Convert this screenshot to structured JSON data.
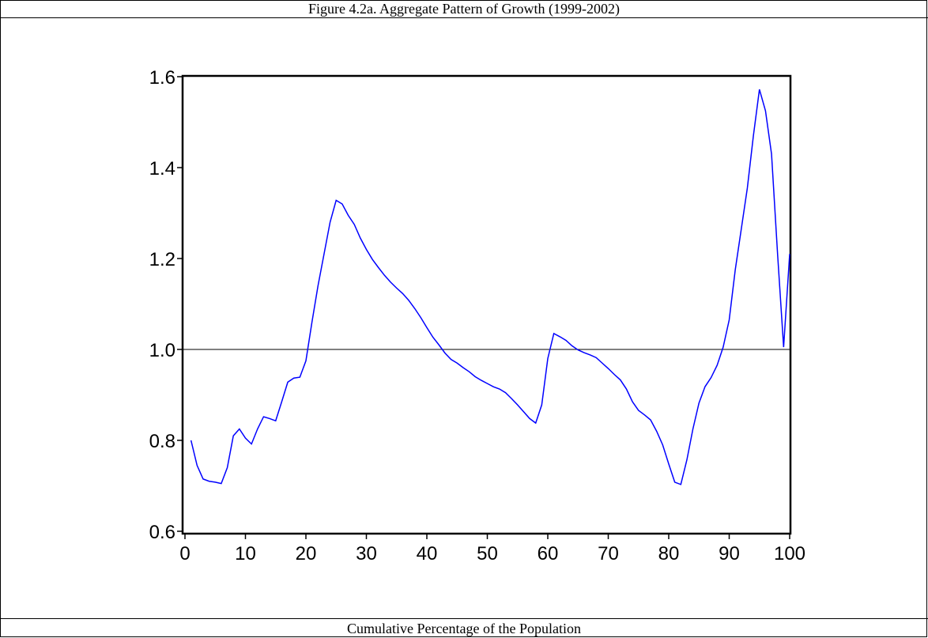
{
  "chart_data": {
    "type": "line",
    "title": "Figure 4.2a. Aggregate Pattern of Growth (1999-2002)",
    "x_label": "Cumulative Percentage of the Population",
    "x": [
      1,
      2,
      3,
      4,
      5,
      6,
      7,
      8,
      9,
      10,
      11,
      12,
      13,
      14,
      15,
      16,
      17,
      18,
      19,
      20,
      21,
      22,
      23,
      24,
      25,
      26,
      27,
      28,
      29,
      30,
      31,
      32,
      33,
      34,
      35,
      36,
      37,
      38,
      39,
      40,
      41,
      42,
      43,
      44,
      45,
      46,
      47,
      48,
      49,
      50,
      51,
      52,
      53,
      54,
      55,
      56,
      57,
      58,
      59,
      60,
      61,
      62,
      63,
      64,
      65,
      66,
      67,
      68,
      69,
      70,
      71,
      72,
      73,
      74,
      75,
      76,
      77,
      78,
      79,
      80,
      81,
      82,
      83,
      84,
      85,
      86,
      87,
      88,
      89,
      90,
      91,
      92,
      93,
      94,
      95,
      96,
      97,
      98,
      99,
      100
    ],
    "series": [
      {
        "color": "#0000ff",
        "values": [
          0.8,
          0.745,
          0.715,
          0.71,
          0.708,
          0.705,
          0.74,
          0.81,
          0.825,
          0.805,
          0.792,
          0.825,
          0.852,
          0.848,
          0.843,
          0.885,
          0.928,
          0.937,
          0.939,
          0.975,
          1.06,
          1.14,
          1.21,
          1.28,
          1.328,
          1.32,
          1.295,
          1.275,
          1.245,
          1.22,
          1.198,
          1.18,
          1.163,
          1.148,
          1.135,
          1.123,
          1.108,
          1.09,
          1.07,
          1.048,
          1.027,
          1.01,
          0.992,
          0.978,
          0.97,
          0.96,
          0.951,
          0.94,
          0.932,
          0.925,
          0.918,
          0.913,
          0.905,
          0.892,
          0.878,
          0.863,
          0.848,
          0.838,
          0.878,
          0.98,
          1.035,
          1.028,
          1.02,
          1.008,
          0.999,
          0.993,
          0.988,
          0.982,
          0.97,
          0.958,
          0.945,
          0.933,
          0.913,
          0.885,
          0.866,
          0.856,
          0.845,
          0.82,
          0.79,
          0.748,
          0.708,
          0.703,
          0.757,
          0.825,
          0.882,
          0.918,
          0.938,
          0.965,
          1.005,
          1.065,
          1.175,
          1.265,
          1.355,
          1.47,
          1.572,
          1.525,
          1.43,
          1.21,
          1.005,
          1.21
        ]
      }
    ],
    "xlim": [
      0,
      100
    ],
    "xticks": [
      0,
      10,
      20,
      30,
      40,
      50,
      60,
      70,
      80,
      90,
      100
    ],
    "ylim": [
      0.6,
      1.6
    ],
    "yticks": [
      0.6,
      0.8,
      {
        "value": 1,
        "label": "1.0"
      },
      1.2,
      1.4,
      1.6
    ],
    "reference_line": 1
  }
}
